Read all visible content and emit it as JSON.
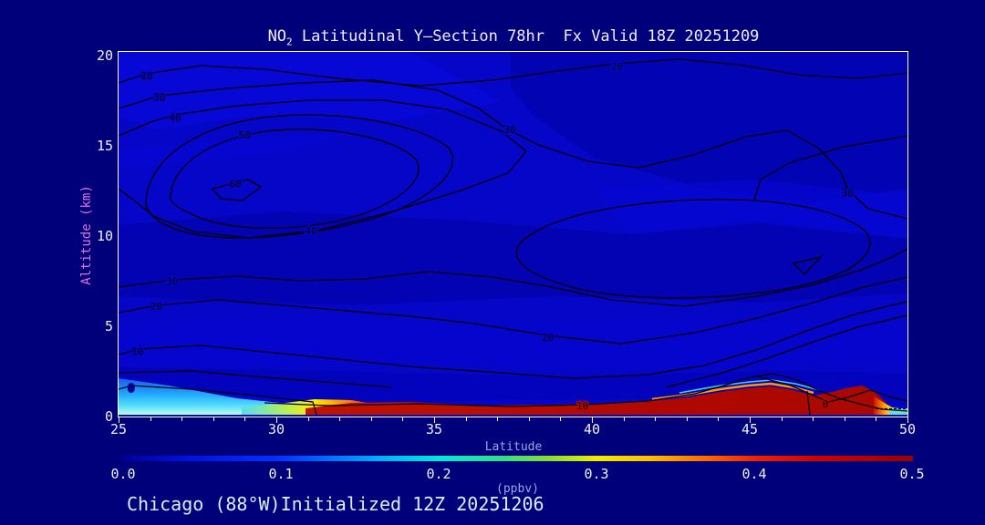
{
  "title": {
    "prefix": "NO",
    "subscript": "2",
    "rest": " Latitudinal Y—Section 78hr  Fx Valid 18Z 20251209"
  },
  "footer": "Chicago (88°W)Initialized 12Z 20251206",
  "axes": {
    "y_label": "Altitude (km)",
    "x_label": "Latitude",
    "y_ticks": [
      "20",
      "15",
      "10",
      "5",
      "0"
    ],
    "x_ticks": [
      "25",
      "30",
      "35",
      "40",
      "45",
      "50"
    ]
  },
  "colorbar": {
    "label": "(ppbv)",
    "ticks": [
      "0.0",
      "0.1",
      "0.2",
      "0.3",
      "0.4",
      "0.5"
    ],
    "stops": [
      "#000099 0%",
      "#0011dd 8%",
      "#0033ff 20%",
      "#00aaff 32%",
      "#00e8dd 40%",
      "#33dd88 48%",
      "#88dd33 54%",
      "#eeee00 60%",
      "#ffbb00 67%",
      "#ff6600 74%",
      "#ee2200 80%",
      "#cc0000 88%",
      "#990000 100%"
    ]
  },
  "chart_data": {
    "type": "filled-contour cross-section (heatmap + contour)",
    "title": "NO2 Latitudinal Y-Section 78hr  Fx Valid 18Z 20251209",
    "x_axis": {
      "label": "Latitude",
      "range": [
        25,
        50
      ],
      "ticks": [
        25,
        30,
        35,
        40,
        45,
        50
      ]
    },
    "y_axis": {
      "label": "Altitude (km)",
      "range": [
        0,
        20
      ],
      "ticks": [
        0,
        5,
        10,
        15,
        20
      ]
    },
    "fill_variable": "NO2",
    "fill_units": "ppbv",
    "fill_range": [
      0.0,
      0.5
    ],
    "colorbar_ticks": [
      0.0,
      0.1,
      0.2,
      0.3,
      0.4,
      0.5
    ],
    "contour_levels_labeled": [
      0,
      10,
      20,
      30,
      40,
      50,
      60
    ],
    "contour_label_points": [
      {
        "value": "20",
        "lat": 25.9,
        "alt": 18.8
      },
      {
        "value": "20",
        "lat": 40.8,
        "alt": 19.3
      },
      {
        "value": "30",
        "lat": 26.3,
        "alt": 17.6
      },
      {
        "value": "30",
        "lat": 37.4,
        "alt": 15.8
      },
      {
        "value": "30",
        "lat": 48.1,
        "alt": 12.3
      },
      {
        "value": "40",
        "lat": 26.8,
        "alt": 16.5
      },
      {
        "value": "40",
        "lat": 31.1,
        "alt": 10.2
      },
      {
        "value": "50",
        "lat": 29.0,
        "alt": 15.5
      },
      {
        "value": "60",
        "lat": 28.7,
        "alt": 12.8
      },
      {
        "value": "30",
        "lat": 26.7,
        "alt": 7.4
      },
      {
        "value": "20",
        "lat": 26.2,
        "alt": 6.0
      },
      {
        "value": "20",
        "lat": 38.6,
        "alt": 4.3
      },
      {
        "value": "10",
        "lat": 25.6,
        "alt": 3.5
      },
      {
        "value": "10",
        "lat": 39.7,
        "alt": 0.5,
        "on_red": true
      },
      {
        "value": "0",
        "lat": 25.4,
        "alt": 1.5
      },
      {
        "value": "0",
        "lat": 47.4,
        "alt": 0.6,
        "on_red": true
      }
    ],
    "features": [
      "dark-red surface maximum band (>0.5 ppbv) from ~lat 31 to ~lat 49 below ~1 km",
      "cyan-to-yellow boundary-layer plume (0.1-0.35 ppbv) near surface, lat 25-31",
      "surface plume bulges to ~1.5-2 km near lat 45-46 and lat 48 with rainbow fringe",
      "closed upper-level contour maximum (60) centered near lat 28-31 at 12-13 km",
      "large closed 30-contour region lat 38-48 at 8-13 km with small inner triangle",
      "quasi-horizontal contours 0,10,20,30 descending toward the surface",
      "short dashed line near surface at far right (lat 49-50)"
    ],
    "legend_position": "horizontal colorbar below x-axis",
    "grid": false
  }
}
